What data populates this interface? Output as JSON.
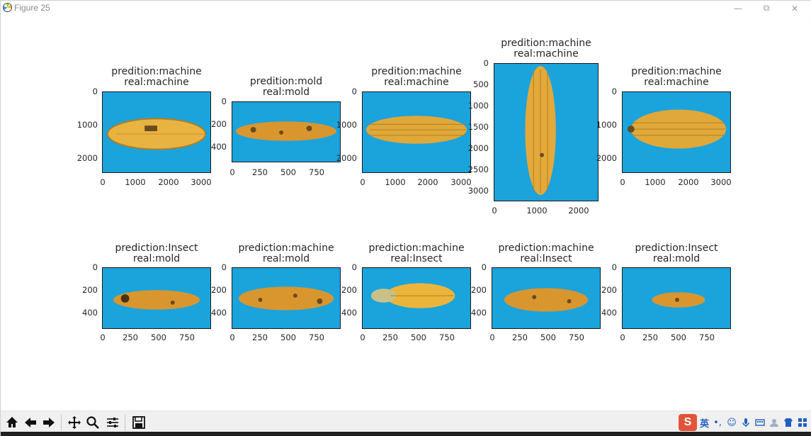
{
  "window": {
    "title": "Figure 25",
    "minimize_label": "—",
    "maximize_label": "⧉",
    "close_label": "✕"
  },
  "colors": {
    "image_background": "#1ba3dc",
    "corn_yellow": "#e8b340",
    "corn_dark": "#6b4a1f"
  },
  "subplots": [
    {
      "row": 1,
      "title_line1": "predition:machine",
      "title_line2": "real:machine",
      "yticks": [
        "0",
        "1000",
        "2000"
      ],
      "xticks": [
        "0",
        "1000",
        "2000",
        "3000"
      ]
    },
    {
      "row": 1,
      "title_line1": "predition:mold",
      "title_line2": "real:mold",
      "yticks": [
        "0",
        "200",
        "400"
      ],
      "xticks": [
        "0",
        "250",
        "500",
        "750"
      ]
    },
    {
      "row": 1,
      "title_line1": "predition:machine",
      "title_line2": "real:machine",
      "yticks": [
        "0",
        "1000",
        "2000"
      ],
      "xticks": [
        "0",
        "1000",
        "2000",
        "3000"
      ]
    },
    {
      "row": 1,
      "title_line1": "predition:machine",
      "title_line2": "real:machine",
      "yticks": [
        "0",
        "500",
        "1000",
        "1500",
        "2000",
        "2500",
        "3000"
      ],
      "xticks": [
        "0",
        "1000",
        "2000"
      ]
    },
    {
      "row": 1,
      "title_line1": "predition:machine",
      "title_line2": "real:machine",
      "yticks": [
        "0",
        "1000",
        "2000"
      ],
      "xticks": [
        "0",
        "1000",
        "2000",
        "3000"
      ]
    },
    {
      "row": 2,
      "title_line1": "prediction:Insect",
      "title_line2": "real:mold",
      "yticks": [
        "0",
        "200",
        "400"
      ],
      "xticks": [
        "0",
        "250",
        "500",
        "750"
      ]
    },
    {
      "row": 2,
      "title_line1": "prediction:machine",
      "title_line2": "real:mold",
      "yticks": [
        "0",
        "200",
        "400"
      ],
      "xticks": [
        "0",
        "250",
        "500",
        "750"
      ]
    },
    {
      "row": 2,
      "title_line1": "prediction:machine",
      "title_line2": "real:Insect",
      "yticks": [
        "0",
        "200",
        "400"
      ],
      "xticks": [
        "0",
        "250",
        "500",
        "750"
      ]
    },
    {
      "row": 2,
      "title_line1": "prediction:machine",
      "title_line2": "real:Insect",
      "yticks": [
        "0",
        "200",
        "400"
      ],
      "xticks": [
        "0",
        "250",
        "500",
        "750"
      ]
    },
    {
      "row": 2,
      "title_line1": "prediction:Insect",
      "title_line2": "real:mold",
      "yticks": [
        "0",
        "200",
        "400"
      ],
      "xticks": [
        "0",
        "250",
        "500",
        "750"
      ]
    }
  ],
  "toolbar": {
    "buttons": [
      {
        "name": "home-icon"
      },
      {
        "name": "back-arrow-icon"
      },
      {
        "name": "forward-arrow-icon"
      },
      {
        "name": "pan-icon"
      },
      {
        "name": "zoom-icon"
      },
      {
        "name": "subplots-config-icon"
      },
      {
        "name": "save-icon"
      }
    ]
  },
  "tray": {
    "ime_brand": "S",
    "ime_language": "英"
  }
}
